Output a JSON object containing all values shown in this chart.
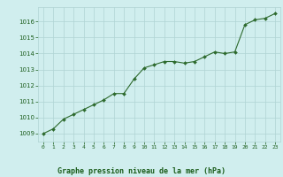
{
  "x": [
    0,
    1,
    2,
    3,
    4,
    5,
    6,
    7,
    8,
    9,
    10,
    11,
    12,
    13,
    14,
    15,
    16,
    17,
    18,
    19,
    20,
    21,
    22,
    23
  ],
  "y": [
    1009.0,
    1009.3,
    1009.9,
    1010.2,
    1010.5,
    1010.8,
    1011.1,
    1011.5,
    1011.5,
    1012.4,
    1013.1,
    1013.3,
    1013.5,
    1013.5,
    1013.4,
    1013.5,
    1013.8,
    1014.1,
    1014.0,
    1014.1,
    1015.8,
    1016.1,
    1016.2,
    1016.5
  ],
  "line_color": "#2d6a2d",
  "marker_color": "#2d6a2d",
  "bg_color": "#d0eeee",
  "grid_color": "#b0d4d4",
  "xlabel": "Graphe pression niveau de la mer (hPa)",
  "label_color": "#1a5c1a",
  "yticks": [
    1009,
    1010,
    1011,
    1012,
    1013,
    1014,
    1015,
    1016
  ],
  "ylim": [
    1008.5,
    1016.9
  ],
  "xlim": [
    -0.5,
    23.5
  ],
  "tick_label_color": "#1a5c1a",
  "xtick_labels": [
    "0",
    "1",
    "2",
    "3",
    "4",
    "5",
    "6",
    "7",
    "8",
    "9",
    "10",
    "11",
    "12",
    "13",
    "14",
    "15",
    "16",
    "17",
    "18",
    "19",
    "20",
    "21",
    "22",
    "23"
  ]
}
